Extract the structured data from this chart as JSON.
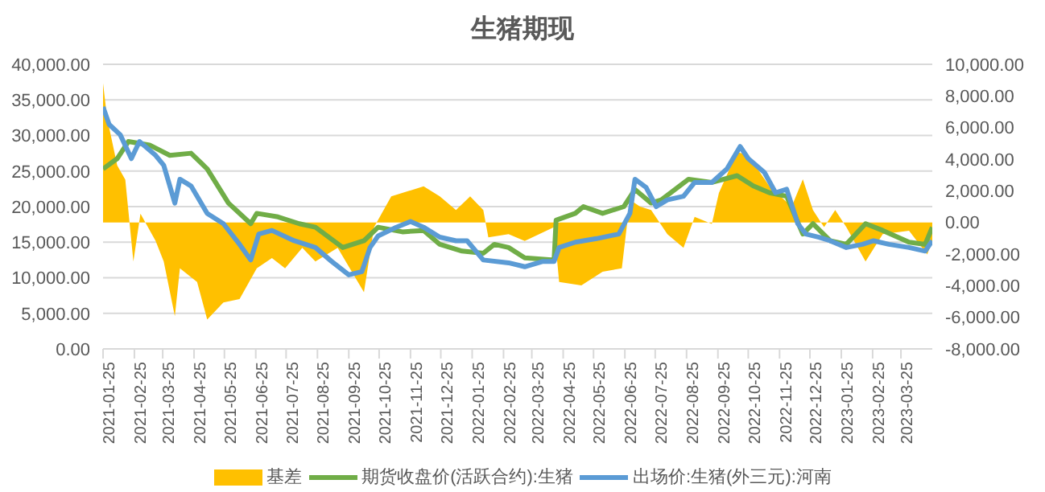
{
  "chart_data": {
    "type": "line",
    "title": "生猪期现",
    "xlim": [
      "2021-01-25",
      "2023-04-25"
    ],
    "xticks": [
      "2021-01-25",
      "2021-02-25",
      "2021-03-25",
      "2021-04-25",
      "2021-05-25",
      "2021-06-25",
      "2021-07-25",
      "2021-08-25",
      "2021-09-25",
      "2021-10-25",
      "2021-11-25",
      "2021-12-25",
      "2022-01-25",
      "2022-02-25",
      "2022-03-25",
      "2022-04-25",
      "2022-05-25",
      "2022-06-25",
      "2022-07-25",
      "2022-08-25",
      "2022-09-25",
      "2022-10-25",
      "2022-11-25",
      "2022-12-25",
      "2023-01-25",
      "2023-02-25",
      "2023-03-25"
    ],
    "ylim": [
      0,
      40000
    ],
    "yticks": [
      {
        "value": 0,
        "label": "0.00"
      },
      {
        "value": 5000,
        "label": "5,000.00"
      },
      {
        "value": 10000,
        "label": "10,000.00"
      },
      {
        "value": 15000,
        "label": "15,000.00"
      },
      {
        "value": 20000,
        "label": "20,000.00"
      },
      {
        "value": 25000,
        "label": "25,000.00"
      },
      {
        "value": 30000,
        "label": "30,000.00"
      },
      {
        "value": 35000,
        "label": "35,000.00"
      },
      {
        "value": 40000,
        "label": "40,000.00"
      }
    ],
    "y2lim": [
      -8000,
      10000
    ],
    "y2ticks": [
      {
        "value": -8000,
        "label": "-8,000.00"
      },
      {
        "value": -6000,
        "label": "-6,000.00"
      },
      {
        "value": -4000,
        "label": "-4,000.00"
      },
      {
        "value": -2000,
        "label": "-2,000.00"
      },
      {
        "value": 0,
        "label": "0.00"
      },
      {
        "value": 2000,
        "label": "2,000.00"
      },
      {
        "value": 4000,
        "label": "4,000.00"
      },
      {
        "value": 6000,
        "label": "6,000.00"
      },
      {
        "value": 8000,
        "label": "8,000.00"
      },
      {
        "value": 10000,
        "label": "10,000.00"
      }
    ],
    "grid": "y",
    "legend": "bottom",
    "marker": "none",
    "series": [
      {
        "name": "基差",
        "type": "area",
        "axis": "y2",
        "color": "#ffc000",
        "x": [
          "2021-01-25",
          "2021-01-29",
          "2021-02-08",
          "2021-02-16",
          "2021-02-24",
          "2021-03-03",
          "2021-03-18",
          "2021-03-26",
          "2021-04-06",
          "2021-04-11",
          "2021-04-28",
          "2021-05-08",
          "2021-05-24",
          "2021-06-09",
          "2021-06-26",
          "2021-07-11",
          "2021-07-24",
          "2021-08-10",
          "2021-08-23",
          "2021-09-14",
          "2021-10-10",
          "2021-10-20",
          "2021-11-06",
          "2021-11-28",
          "2021-12-08",
          "2021-12-24",
          "2022-01-09",
          "2022-01-23",
          "2022-02-05",
          "2022-02-10",
          "2022-03-02",
          "2022-03-18",
          "2022-04-16",
          "2022-04-21",
          "2022-05-13",
          "2022-06-03",
          "2022-06-22",
          "2022-06-30",
          "2022-07-10",
          "2022-07-21",
          "2022-08-06",
          "2022-08-22",
          "2022-09-02",
          "2022-09-19",
          "2022-09-26",
          "2022-10-14",
          "2022-10-25",
          "2022-11-15",
          "2022-12-07",
          "2022-12-18",
          "2022-12-28",
          "2023-01-08",
          "2023-01-19",
          "2023-01-30",
          "2023-02-18",
          "2023-03-07",
          "2023-04-02",
          "2023-04-20",
          "2023-04-25"
        ],
        "values": [
          8800,
          6600,
          3600,
          2700,
          -2470,
          560,
          -1170,
          -2470,
          -5930,
          -2900,
          -3770,
          -6140,
          -5060,
          -4850,
          -2900,
          -2250,
          -2900,
          -1600,
          -2470,
          -1600,
          -4420,
          -300,
          1650,
          2080,
          2290,
          1650,
          780,
          1650,
          780,
          -950,
          -740,
          -1170,
          -300,
          -3770,
          -3980,
          -3120,
          -2900,
          1430,
          1000,
          780,
          -740,
          -1600,
          350,
          -90,
          1860,
          4460,
          4240,
          2290,
          1000,
          2730,
          780,
          -300,
          780,
          -300,
          -2470,
          -740,
          -520,
          -2030,
          -1170
        ]
      },
      {
        "name": "期货收盘价(活跃合约):生猪",
        "color": "#70ad47",
        "x": [
          "2021-01-25",
          "2021-02-08",
          "2021-02-19",
          "2021-03-12",
          "2021-04-01",
          "2021-04-22",
          "2021-05-08",
          "2021-05-29",
          "2021-06-20",
          "2021-06-26",
          "2021-07-17",
          "2021-08-07",
          "2021-08-23",
          "2021-09-19",
          "2021-10-10",
          "2021-10-24",
          "2021-11-17",
          "2021-12-08",
          "2021-12-24",
          "2022-01-15",
          "2022-02-05",
          "2022-02-16",
          "2022-03-02",
          "2022-03-18",
          "2022-04-16",
          "2022-04-18",
          "2022-05-07",
          "2022-05-15",
          "2022-06-03",
          "2022-06-24",
          "2022-07-05",
          "2022-07-21",
          "2022-07-31",
          "2022-08-27",
          "2022-09-19",
          "2022-10-14",
          "2022-10-30",
          "2022-11-15",
          "2022-12-02",
          "2022-12-18",
          "2022-12-28",
          "2023-01-14",
          "2023-01-30",
          "2023-02-18",
          "2023-03-07",
          "2023-04-02",
          "2023-04-18",
          "2023-04-25"
        ],
        "values": [
          25300,
          26750,
          29150,
          28650,
          27200,
          27500,
          25300,
          20500,
          17600,
          19050,
          18550,
          17600,
          17100,
          14250,
          15200,
          17100,
          16450,
          16650,
          14700,
          13750,
          13450,
          14700,
          14250,
          12800,
          12500,
          18100,
          19050,
          20000,
          19050,
          20000,
          22400,
          20500,
          20950,
          23850,
          23400,
          24350,
          22900,
          21950,
          21450,
          16150,
          17600,
          15200,
          14700,
          17600,
          16650,
          15000,
          14700,
          17100
        ]
      },
      {
        "name": "出场价:生猪(外三元):河南",
        "color": "#5b9bd5",
        "x": [
          "2021-01-25",
          "2021-01-31",
          "2021-02-11",
          "2021-02-22",
          "2021-03-02",
          "2021-03-18",
          "2021-03-26",
          "2021-04-06",
          "2021-04-11",
          "2021-04-22",
          "2021-05-08",
          "2021-05-24",
          "2021-06-09",
          "2021-06-20",
          "2021-06-28",
          "2021-07-11",
          "2021-08-02",
          "2021-08-23",
          "2021-09-08",
          "2021-09-25",
          "2021-10-08",
          "2021-10-16",
          "2021-10-24",
          "2021-11-11",
          "2021-11-25",
          "2021-12-08",
          "2021-12-24",
          "2022-01-09",
          "2022-01-20",
          "2022-02-05",
          "2022-03-02",
          "2022-03-18",
          "2022-04-05",
          "2022-04-16",
          "2022-04-21",
          "2022-05-07",
          "2022-05-28",
          "2022-06-19",
          "2022-06-30",
          "2022-07-05",
          "2022-07-16",
          "2022-07-26",
          "2022-08-06",
          "2022-08-22",
          "2022-09-02",
          "2022-09-19",
          "2022-10-04",
          "2022-10-17",
          "2022-10-25",
          "2022-11-10",
          "2022-11-21",
          "2022-12-02",
          "2022-12-13",
          "2022-12-21",
          "2023-01-03",
          "2023-01-14",
          "2023-01-30",
          "2023-02-15",
          "2023-02-26",
          "2023-03-13",
          "2023-04-02",
          "2023-04-18",
          "2023-04-25"
        ],
        "values": [
          34000,
          31550,
          30100,
          26750,
          29150,
          27200,
          25800,
          20500,
          23850,
          22900,
          19050,
          17600,
          14700,
          12500,
          16150,
          16650,
          15200,
          14250,
          12300,
          10400,
          10870,
          14250,
          15870,
          17100,
          17900,
          17100,
          15700,
          15200,
          15200,
          12500,
          12100,
          11550,
          12300,
          12300,
          14250,
          15000,
          15500,
          16150,
          19050,
          23850,
          22700,
          20000,
          20950,
          21450,
          23400,
          23400,
          25300,
          28450,
          26750,
          24800,
          21950,
          22450,
          17600,
          16150,
          15700,
          15200,
          14250,
          14700,
          15200,
          14700,
          14250,
          13750,
          15200
        ]
      }
    ]
  }
}
